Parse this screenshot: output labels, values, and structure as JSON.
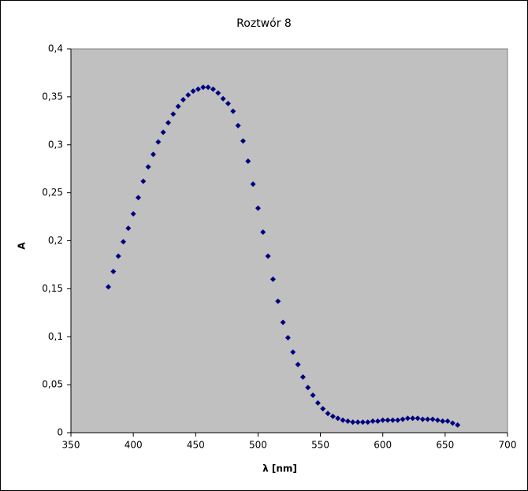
{
  "chart_data": {
    "type": "scatter",
    "title": "Roztwór 8",
    "x_label": "λ [nm]",
    "y_label": "A",
    "xlim": [
      350,
      700
    ],
    "xticks": [
      350,
      400,
      450,
      500,
      550,
      600,
      650,
      700
    ],
    "ylim": [
      0,
      0.4
    ],
    "yticks": [
      0,
      {
        "value": 0.05,
        "label": "0,05"
      },
      {
        "value": 0.1,
        "label": "0,1"
      },
      {
        "value": 0.15,
        "label": "0,15"
      },
      {
        "value": 0.2,
        "label": "0,2"
      },
      {
        "value": 0.25,
        "label": "0,25"
      },
      {
        "value": 0.3,
        "label": "0,3"
      },
      {
        "value": 0.35,
        "label": "0,35"
      },
      {
        "value": 0.4,
        "label": "0,4"
      }
    ],
    "series": [
      {
        "color": "#000080",
        "x": [
          380,
          384,
          388,
          392,
          396,
          400,
          404,
          408,
          412,
          416,
          420,
          424,
          428,
          432,
          436,
          440,
          444,
          448,
          452,
          456,
          460,
          464,
          468,
          472,
          476,
          480,
          484,
          488,
          492,
          496,
          500,
          504,
          508,
          512,
          516,
          520,
          524,
          528,
          532,
          536,
          540,
          544,
          548,
          552,
          556,
          560,
          564,
          568,
          572,
          576,
          580,
          584,
          588,
          592,
          596,
          600,
          604,
          608,
          612,
          616,
          620,
          624,
          628,
          632,
          636,
          640,
          644,
          648,
          652,
          656,
          660
        ],
        "values": [
          0.152,
          0.168,
          0.184,
          0.199,
          0.213,
          0.228,
          0.245,
          0.262,
          0.277,
          0.29,
          0.303,
          0.313,
          0.323,
          0.332,
          0.34,
          0.347,
          0.352,
          0.356,
          0.358,
          0.36,
          0.36,
          0.358,
          0.354,
          0.348,
          0.343,
          0.335,
          0.32,
          0.304,
          0.283,
          0.259,
          0.234,
          0.209,
          0.184,
          0.16,
          0.137,
          0.115,
          0.099,
          0.084,
          0.071,
          0.058,
          0.047,
          0.039,
          0.031,
          0.025,
          0.02,
          0.017,
          0.015,
          0.013,
          0.012,
          0.011,
          0.011,
          0.011,
          0.011,
          0.012,
          0.012,
          0.013,
          0.013,
          0.013,
          0.013,
          0.014,
          0.015,
          0.015,
          0.015,
          0.014,
          0.014,
          0.014,
          0.013,
          0.012,
          0.012,
          0.01,
          0.008
        ]
      }
    ]
  }
}
